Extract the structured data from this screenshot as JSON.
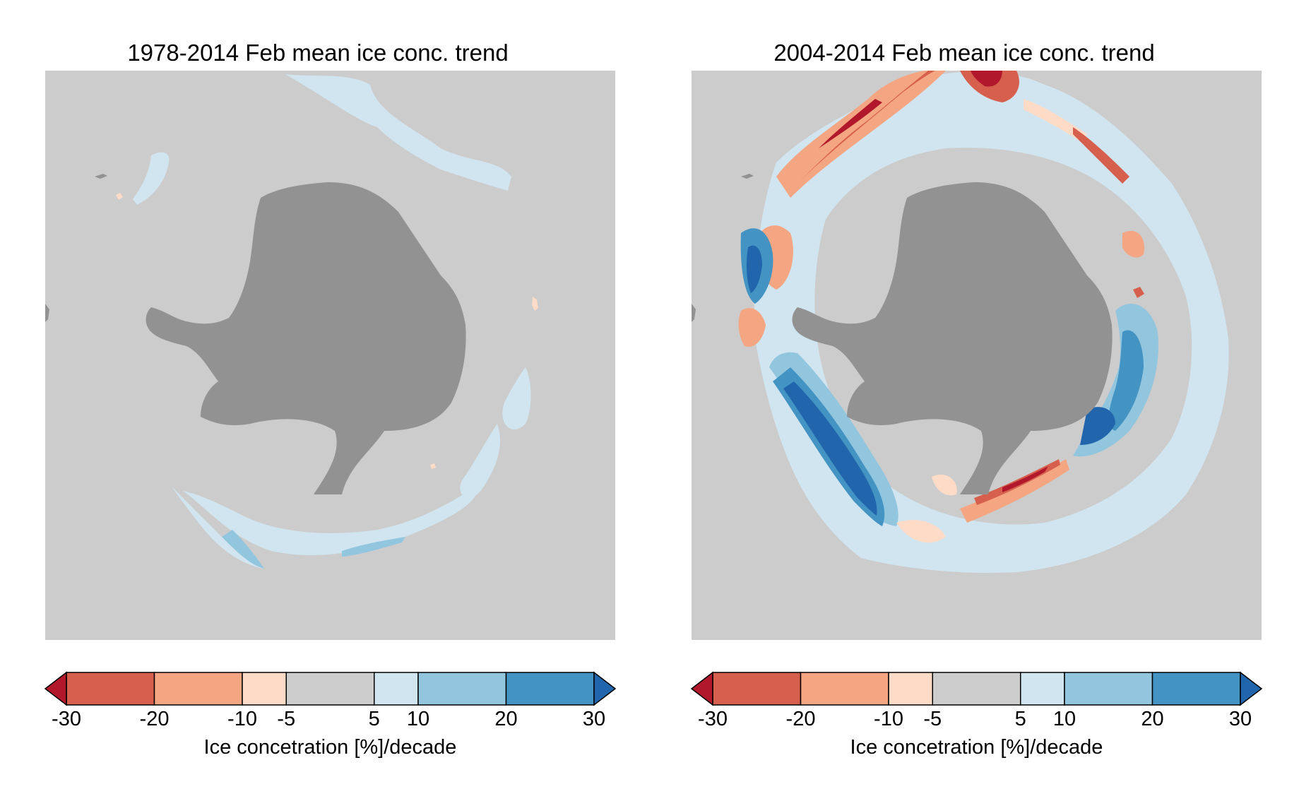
{
  "colors": {
    "ocean": "#cccccc",
    "land": "#929292",
    "levels": [
      "#b2182b",
      "#d6604d",
      "#f4a582",
      "#fddbc7",
      "#cccccc",
      "#d1e5f0",
      "#92c5de",
      "#4393c3",
      "#2166ac"
    ]
  },
  "panels": [
    {
      "id": "left",
      "title": "1978-2014 Feb mean ice conc. trend",
      "colorbar_label": "Ice concetration [%]/decade"
    },
    {
      "id": "right",
      "title": "2004-2014 Feb mean ice conc. trend",
      "colorbar_label": "Ice concetration [%]/decade"
    }
  ],
  "chart_data": [
    {
      "type": "heatmap",
      "title": "1978-2014 Feb mean ice conc. trend",
      "colorbar": {
        "label": "Ice concetration [%]/decade",
        "boundaries": [
          -30,
          -20,
          -10,
          -5,
          5,
          10,
          20,
          30
        ],
        "ticks": [
          "-30",
          "-20",
          "-10",
          "-5",
          "5",
          "10",
          "20",
          "30"
        ],
        "extend": "both",
        "colors": [
          "#d6604d",
          "#f4a582",
          "#fddbc7",
          "#cccccc",
          "#d1e5f0",
          "#92c5de",
          "#4393c3"
        ],
        "under_color": "#b2182b",
        "over_color": "#2166ac"
      }
    },
    {
      "type": "heatmap",
      "title": "2004-2014 Feb mean ice conc. trend",
      "colorbar": {
        "label": "Ice concetration [%]/decade",
        "boundaries": [
          -30,
          -20,
          -10,
          -5,
          5,
          10,
          20,
          30
        ],
        "ticks": [
          "-30",
          "-20",
          "-10",
          "-5",
          "5",
          "10",
          "20",
          "30"
        ],
        "extend": "both",
        "colors": [
          "#d6604d",
          "#f4a582",
          "#fddbc7",
          "#cccccc",
          "#d1e5f0",
          "#92c5de",
          "#4393c3"
        ],
        "under_color": "#b2182b",
        "over_color": "#2166ac"
      }
    }
  ]
}
